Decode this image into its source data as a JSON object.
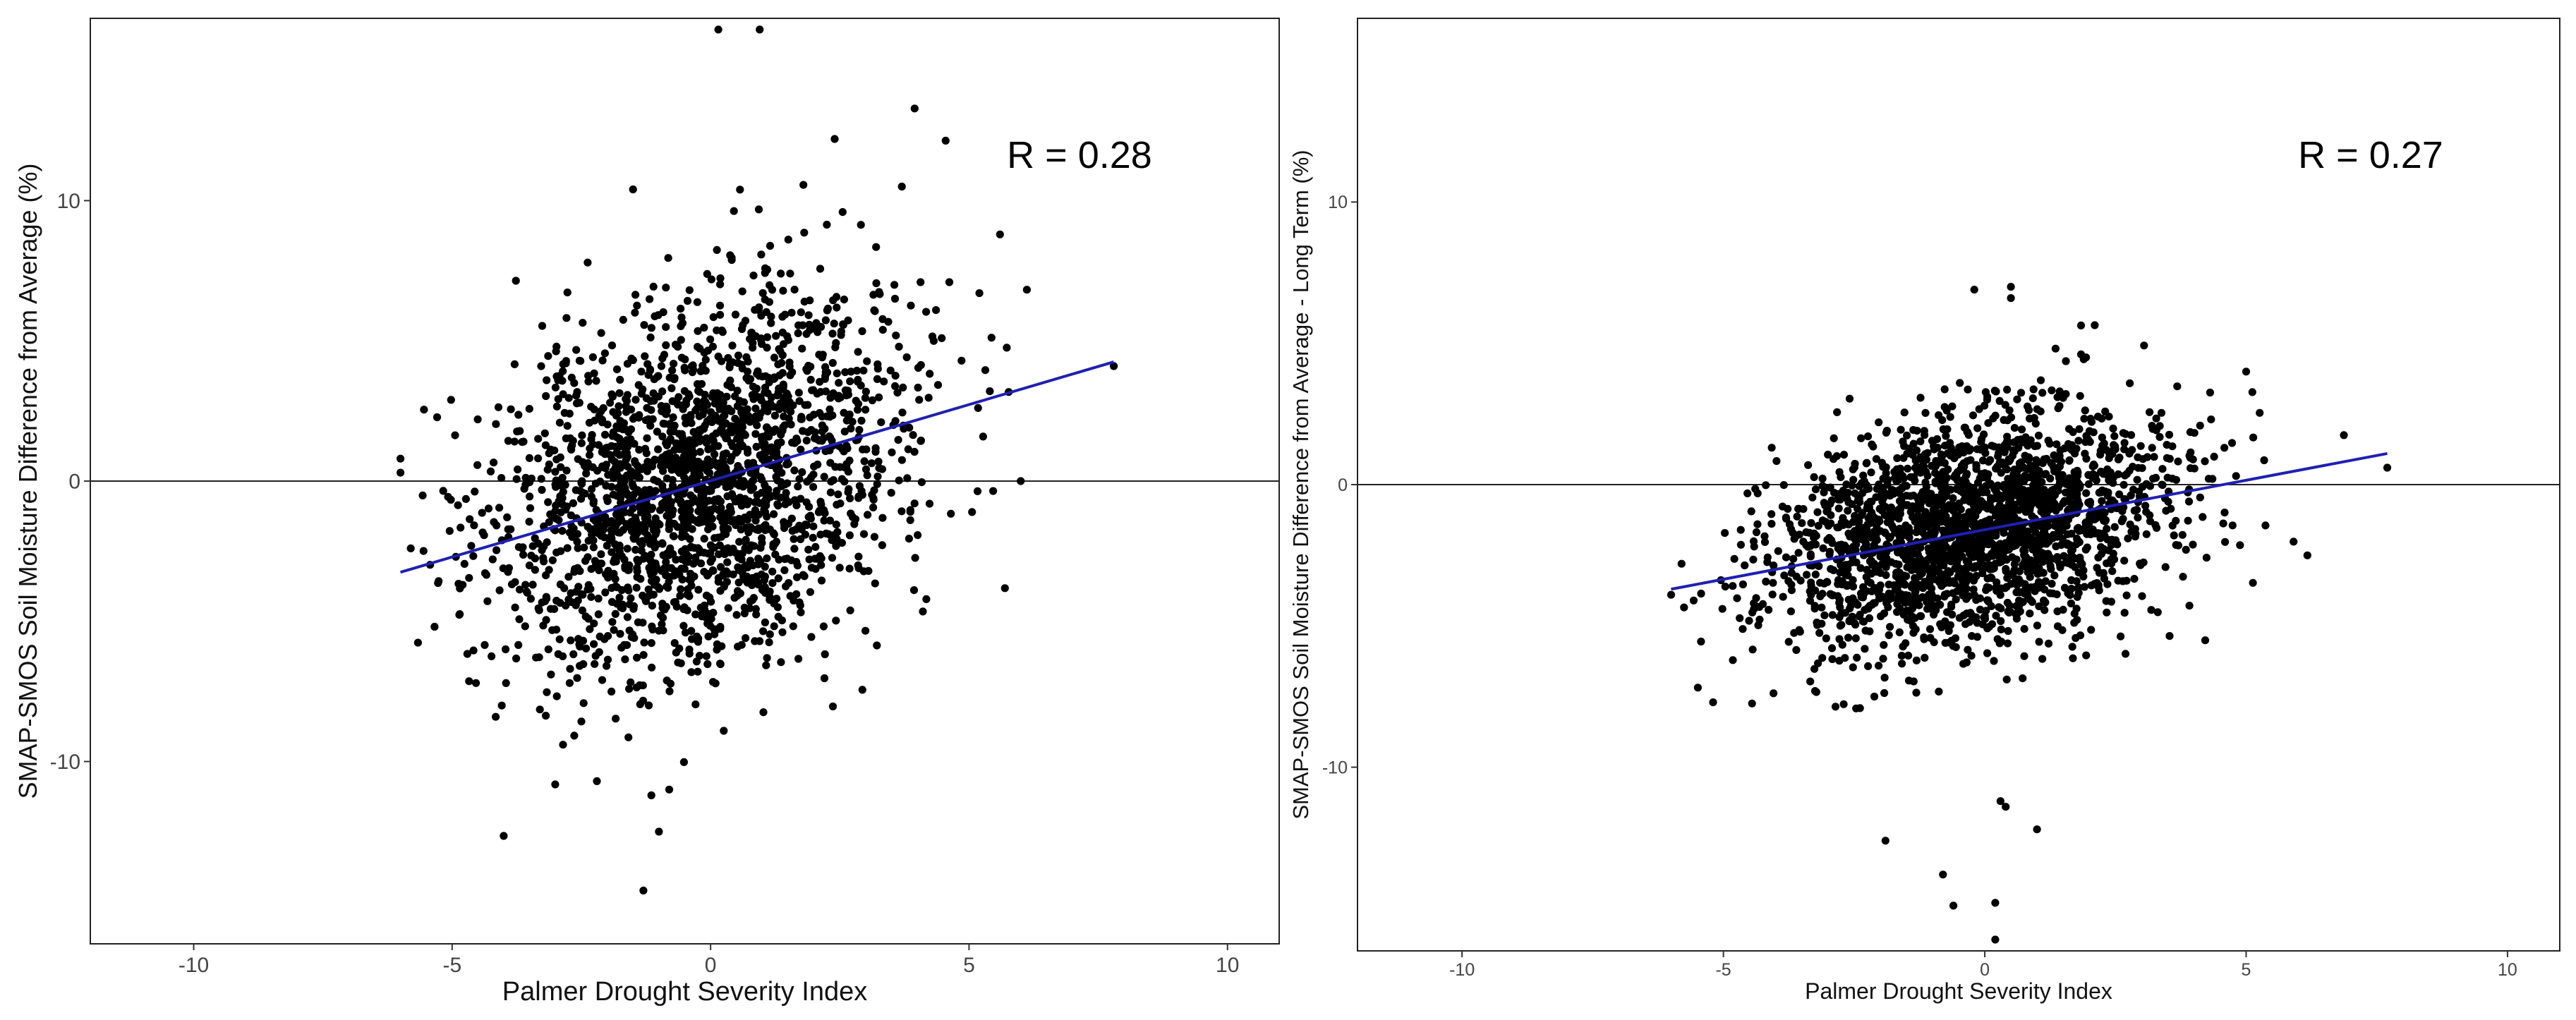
{
  "chart_data": [
    {
      "type": "scatter",
      "xlabel": "Palmer Drought Severity Index",
      "ylabel": "SMAP-SMOS Soil Moisture Difference from Average (%)",
      "xlim": [
        -12,
        11
      ],
      "ylim": [
        -16.5,
        16.5
      ],
      "x_ticks": [
        -10,
        -5,
        0,
        5,
        10
      ],
      "y_ticks": [
        -10,
        0,
        10
      ],
      "grid": false,
      "reference_line_y": 0,
      "annotation": "R = 0.28",
      "fit_line": {
        "x": [
          -6.0,
          7.8
        ],
        "y": [
          -3.25,
          4.25
        ],
        "color": "#1f1fb4"
      },
      "point_cloud": {
        "n": 2200,
        "x_mean": -0.2,
        "x_sd": 2.0,
        "y_sd": 3.8,
        "intercept": 0.0,
        "slope": 0.54,
        "x_min": -6.0,
        "x_max": 7.8,
        "seed": 11
      },
      "values": [
        {
          "x": 0.15,
          "y": 16.1
        },
        {
          "x": 0.95,
          "y": 16.1
        },
        {
          "x": 2.4,
          "y": 12.2
        },
        {
          "x": -1.3,
          "y": -14.6
        },
        {
          "x": -1.0,
          "y": -12.5
        },
        {
          "x": -0.8,
          "y": -11.0
        },
        {
          "x": 3.7,
          "y": 10.5
        },
        {
          "x": -1.5,
          "y": 10.4
        },
        {
          "x": 6.0,
          "y": 0.0
        },
        {
          "x": -6.0,
          "y": 0.8
        },
        {
          "x": -6.0,
          "y": 0.3
        },
        {
          "x": -5.8,
          "y": -2.4
        },
        {
          "x": 7.8,
          "y": 4.1
        },
        {
          "x": 5.2,
          "y": 6.7
        },
        {
          "x": -2.2,
          "y": -10.7
        }
      ]
    },
    {
      "type": "scatter",
      "xlabel": "Palmer Drought Severity Index",
      "ylabel": "SMAP-SMOS Soil Moisture Difference from Average - Long Term (%)",
      "xlim": [
        -12,
        11
      ],
      "ylim": [
        -16.5,
        16.5
      ],
      "x_ticks": [
        -10,
        -5,
        0,
        5,
        10
      ],
      "y_ticks": [
        -10,
        0,
        10
      ],
      "grid": false,
      "reference_line_y": 0,
      "annotation": "R = 0.27",
      "fit_line": {
        "x": [
          -6.0,
          7.7
        ],
        "y": [
          -3.7,
          1.1
        ],
        "color": "#1f1fb4"
      },
      "point_cloud": {
        "n": 2300,
        "x_mean": -0.3,
        "x_sd": 1.9,
        "y_sd": 2.3,
        "intercept": -1.5,
        "slope": 0.35,
        "x_min": -6.0,
        "x_max": 7.7,
        "seed": 23
      },
      "values": [
        {
          "x": 0.2,
          "y": -16.1
        },
        {
          "x": -0.6,
          "y": -14.9
        },
        {
          "x": 0.2,
          "y": -14.8
        },
        {
          "x": -0.8,
          "y": -13.8
        },
        {
          "x": -1.9,
          "y": -12.6
        },
        {
          "x": 0.4,
          "y": -11.4
        },
        {
          "x": 0.3,
          "y": -11.2
        },
        {
          "x": 0.5,
          "y": 7.0
        },
        {
          "x": 0.5,
          "y": 6.6
        },
        {
          "x": -0.2,
          "y": 6.9
        },
        {
          "x": 5.0,
          "y": 4.0
        },
        {
          "x": 7.7,
          "y": 0.6
        },
        {
          "x": -6.0,
          "y": -3.9
        },
        {
          "x": -5.8,
          "y": -2.8
        },
        {
          "x": 1.0,
          "y": -12.2
        }
      ]
    }
  ]
}
